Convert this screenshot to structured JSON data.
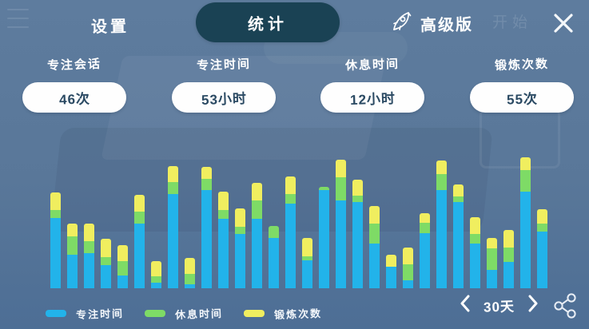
{
  "topbar": {
    "tabs": [
      {
        "label": "设置",
        "active": false
      },
      {
        "label": "统计",
        "active": true
      }
    ],
    "premium": {
      "icon": "rocket-icon",
      "label": "高级版"
    },
    "background_faint_text": "开始",
    "close_icon": "x"
  },
  "stats": [
    {
      "label": "专注会话",
      "value": "46次"
    },
    {
      "label": "专注时间",
      "value": "53小时"
    },
    {
      "label": "休息时间",
      "value": "12小时"
    },
    {
      "label": "锻炼次数",
      "value": "55次"
    }
  ],
  "chart_data": {
    "type": "bar",
    "stacked": true,
    "title": "",
    "xlabel": "",
    "ylabel": "",
    "x_labels_visible": false,
    "axes_visible": false,
    "grid": false,
    "legend_position": "bottom-left",
    "value_units": "relative heights in px as rendered (chart shows no axis or tick labels)",
    "categories": [
      "1",
      "2",
      "3",
      "4",
      "5",
      "6",
      "7",
      "8",
      "9",
      "10",
      "11",
      "12",
      "13",
      "14",
      "15",
      "16",
      "17",
      "18",
      "19",
      "20",
      "21",
      "22",
      "23",
      "24",
      "25",
      "26",
      "27",
      "28",
      "29",
      "30"
    ],
    "series": [
      {
        "name": "专注时间",
        "color": "#22b3ea",
        "values": [
          88,
          42,
          44,
          29,
          16,
          81,
          7,
          118,
          5,
          123,
          87,
          68,
          87,
          63,
          106,
          35,
          123,
          110,
          108,
          56,
          27,
          10,
          69,
          123,
          108,
          56,
          23,
          33,
          121,
          71
        ]
      },
      {
        "name": "休息时间",
        "color": "#7edb66",
        "values": [
          10,
          23,
          15,
          10,
          18,
          15,
          8,
          15,
          13,
          14,
          11,
          9,
          23,
          15,
          12,
          5,
          4,
          29,
          8,
          25,
          0,
          20,
          13,
          20,
          7,
          12,
          27,
          18,
          27,
          10
        ]
      },
      {
        "name": "锻炼次数",
        "color": "#f0ee5f",
        "values": [
          22,
          16,
          22,
          23,
          20,
          21,
          19,
          20,
          20,
          15,
          23,
          23,
          22,
          0,
          22,
          23,
          0,
          22,
          20,
          22,
          15,
          21,
          12,
          17,
          15,
          21,
          13,
          22,
          16,
          18
        ]
      }
    ]
  },
  "pagination": {
    "range_label": "30天"
  },
  "colors": {
    "background": "#597799",
    "active_tab_pill": "#1a4254",
    "card_bg": "#fefefe",
    "card_text": "#2b4a63",
    "bar_blue": "#22b3ea",
    "bar_green": "#7edb66",
    "bar_yellow": "#f0ee5f"
  }
}
